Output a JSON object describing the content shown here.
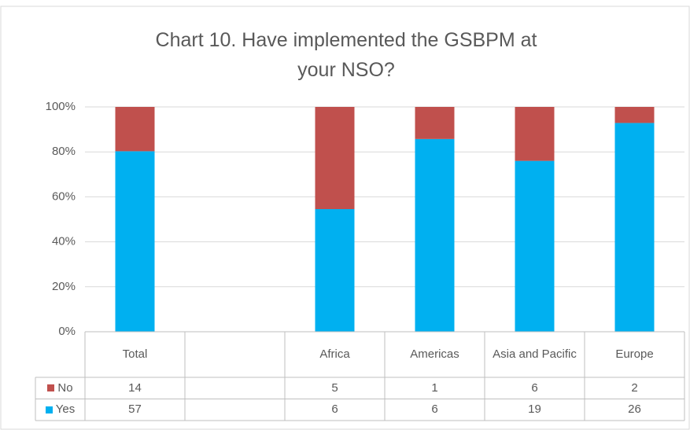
{
  "chart_data": {
    "type": "bar",
    "stacking": "percent",
    "title": "Chart 10. Have implemented the GSBPM at your NSO?",
    "categories": [
      "Total",
      null,
      "Africa",
      "Americas",
      "Asia and Pacific",
      "Europe"
    ],
    "series": [
      {
        "name": "No",
        "color": "#c0504d",
        "values": [
          14,
          null,
          5,
          1,
          6,
          2
        ]
      },
      {
        "name": "Yes",
        "color": "#00b0f0",
        "values": [
          57,
          null,
          6,
          6,
          19,
          26
        ]
      }
    ],
    "ylim": [
      0,
      100
    ],
    "yticks": [
      {
        "value": 0,
        "label": "0%"
      },
      {
        "value": 20,
        "label": "20%"
      },
      {
        "value": 40,
        "label": "40%"
      },
      {
        "value": 60,
        "label": "60%"
      },
      {
        "value": 80,
        "label": "80%"
      },
      {
        "value": 100,
        "label": "100%"
      }
    ],
    "grid": true,
    "data_table": true
  }
}
